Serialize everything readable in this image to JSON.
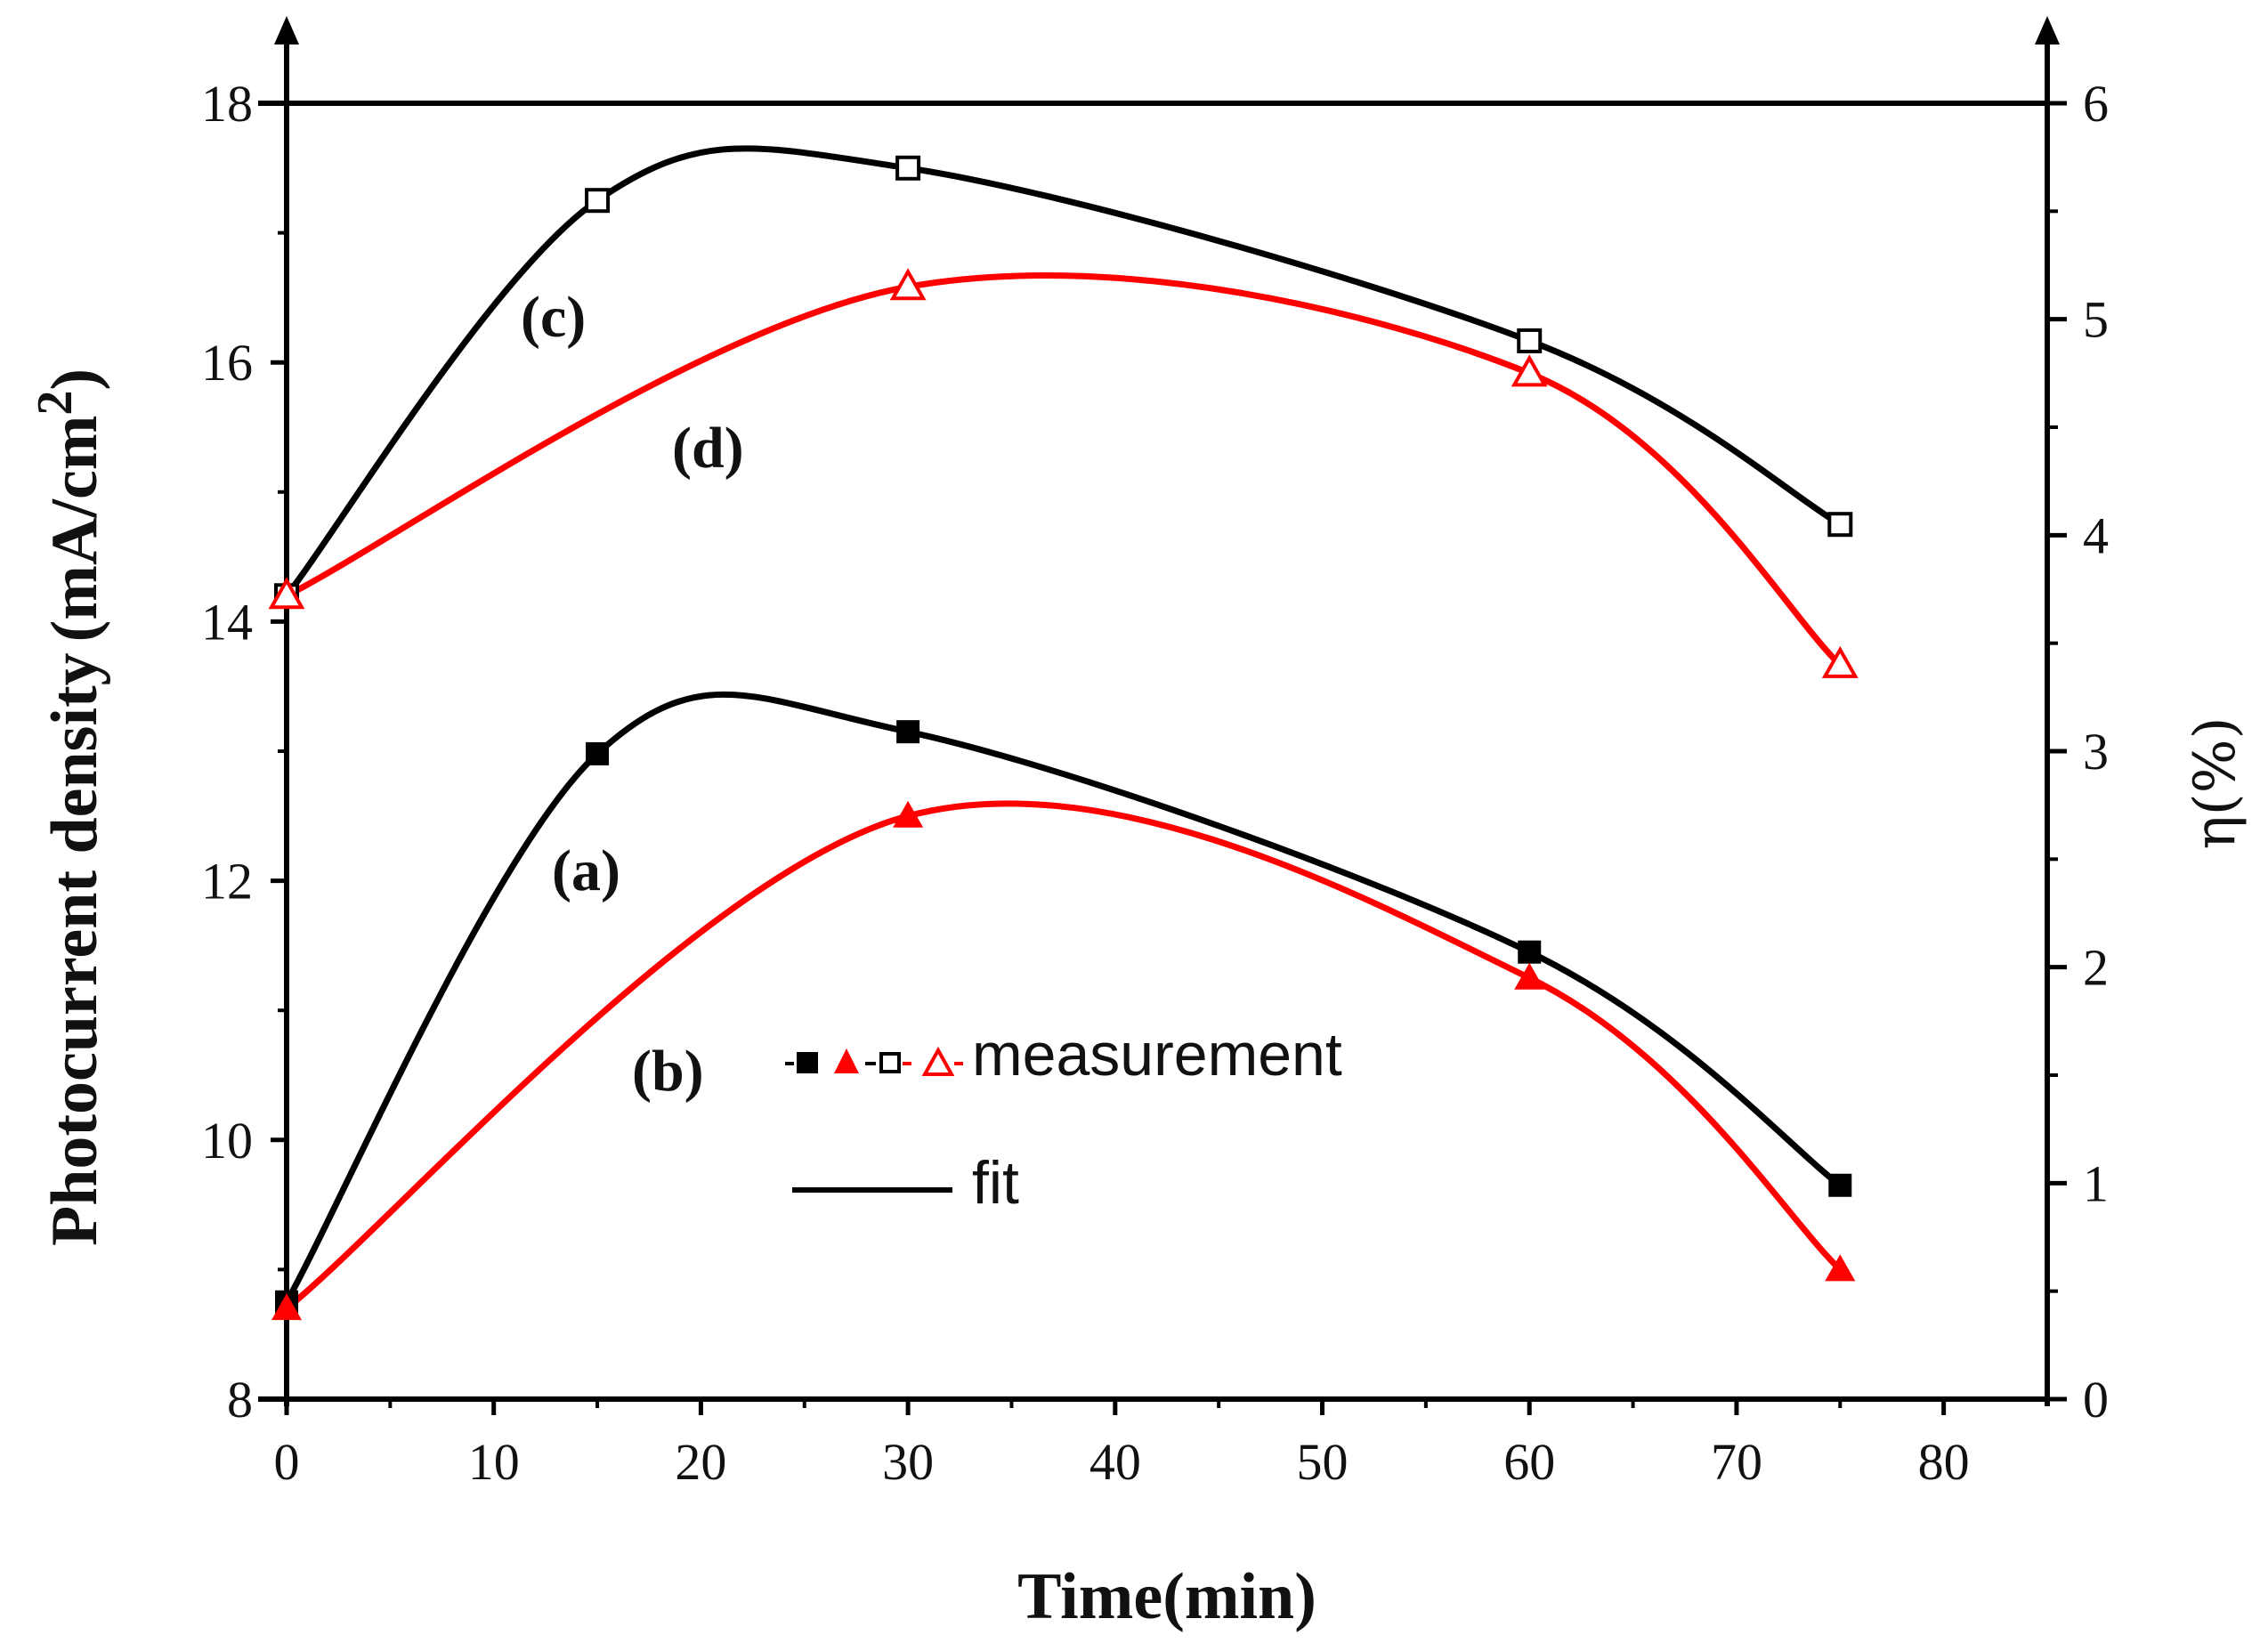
{
  "chart_data": {
    "type": "line",
    "title": "",
    "xlabel": "Time(min)",
    "ylabel": "Photocurrent density",
    "ylabel_unit": "(mA/cm",
    "ylabel_sup": "2",
    "ylabel_close": ")",
    "y2label": "η(%)",
    "xlim": [
      0,
      85
    ],
    "ylim": [
      8,
      18
    ],
    "y2lim": [
      0,
      6
    ],
    "xticks": [
      0,
      10,
      20,
      30,
      40,
      50,
      60,
      70,
      80
    ],
    "yticks": [
      8,
      10,
      12,
      14,
      16,
      18
    ],
    "y2ticks": [
      0,
      1,
      2,
      3,
      4,
      5,
      6
    ],
    "series": [
      {
        "name": "(a)",
        "axis": "left",
        "color": "#000000",
        "marker": "square-filled",
        "x": [
          0,
          15,
          30,
          60,
          75
        ],
        "values": [
          8.75,
          12.98,
          13.15,
          11.45,
          9.65
        ]
      },
      {
        "name": "(b)",
        "axis": "left",
        "color": "#ff0000",
        "marker": "triangle-filled",
        "x": [
          0,
          30,
          60,
          75
        ],
        "values": [
          8.7,
          12.5,
          11.25,
          9.0
        ]
      },
      {
        "name": "(c)",
        "axis": "right",
        "color": "#000000",
        "marker": "square-open",
        "x": [
          0,
          15,
          30,
          60,
          75
        ],
        "values": [
          3.72,
          5.55,
          5.7,
          4.9,
          4.05
        ]
      },
      {
        "name": "(d)",
        "axis": "right",
        "color": "#ff0000",
        "marker": "triangle-open",
        "x": [
          0,
          30,
          60,
          75
        ],
        "values": [
          3.72,
          5.15,
          4.75,
          3.4
        ]
      }
    ],
    "legend": {
      "measurement_label": "measurement",
      "fit_label": "fit",
      "placement": "center"
    }
  }
}
